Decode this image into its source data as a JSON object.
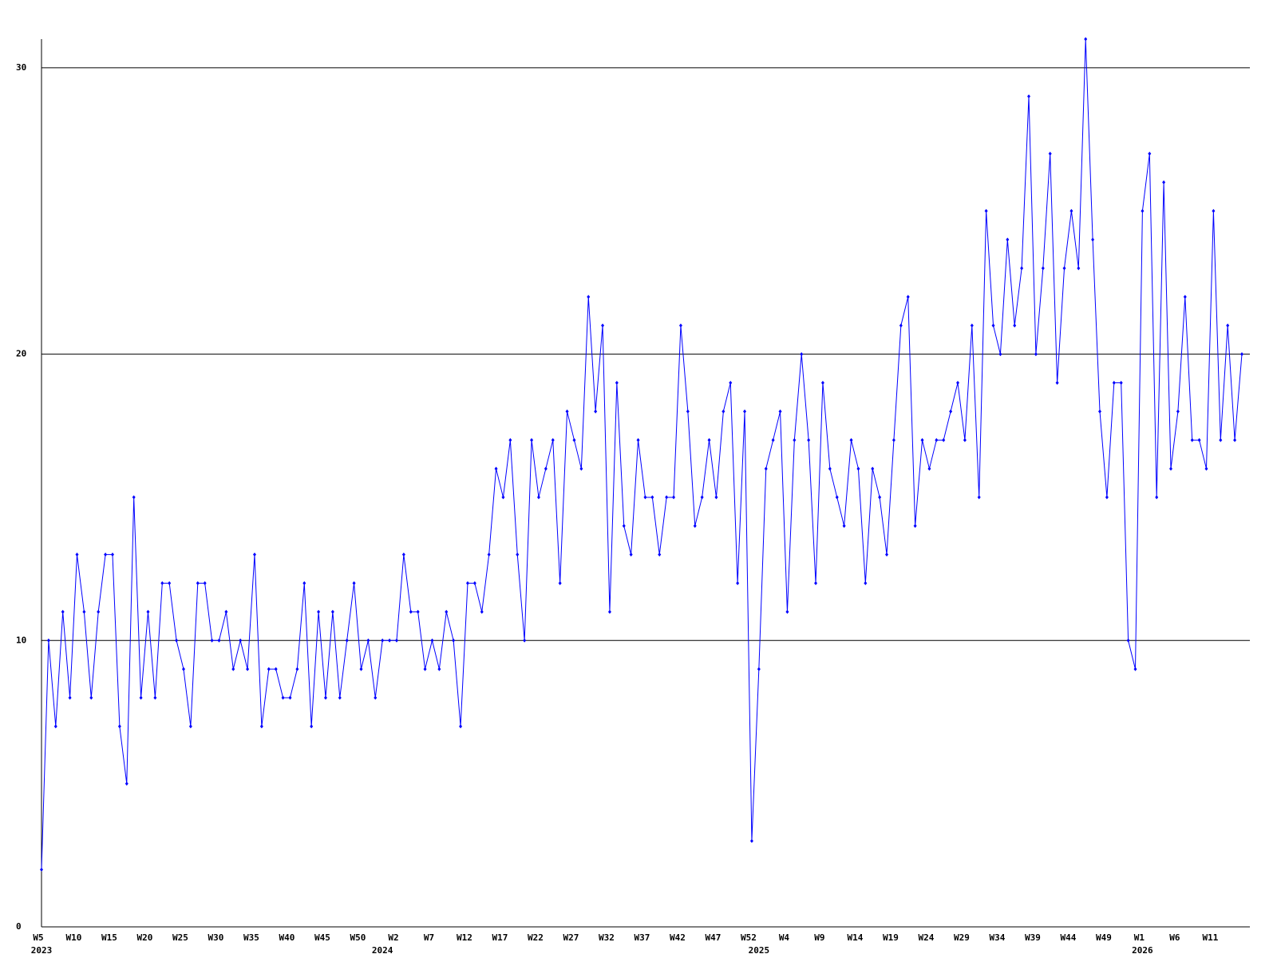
{
  "chart_data": {
    "type": "line",
    "categories": [
      "W5",
      null,
      null,
      null,
      null,
      "W10",
      null,
      null,
      null,
      null,
      "W15",
      null,
      null,
      null,
      null,
      "W20",
      null,
      null,
      null,
      null,
      "W25",
      null,
      null,
      null,
      null,
      "W30",
      null,
      null,
      null,
      null,
      "W35",
      null,
      null,
      null,
      null,
      "W40",
      null,
      null,
      null,
      null,
      "W45",
      null,
      null,
      null,
      null,
      "W50",
      null,
      null,
      null,
      null,
      "W2",
      null,
      null,
      null,
      null,
      "W7",
      null,
      null,
      null,
      null,
      "W12",
      null,
      null,
      null,
      null,
      "W17",
      null,
      null,
      null,
      null,
      "W22",
      null,
      null,
      null,
      null,
      "W27",
      null,
      null,
      null,
      null,
      "W32",
      null,
      null,
      null,
      null,
      "W37",
      null,
      null,
      null,
      null,
      "W42",
      null,
      null,
      null,
      null,
      "W47",
      null,
      null,
      null,
      null,
      "W52",
      null,
      null,
      null,
      null,
      "W4",
      null,
      null,
      null,
      null,
      "W9",
      null,
      null,
      null,
      null,
      "W14",
      null,
      null,
      null,
      null,
      "W19",
      null,
      null,
      null,
      null,
      "W24",
      null,
      null,
      null,
      null,
      "W29",
      null,
      null,
      null,
      null,
      "W34",
      null,
      null,
      null,
      null,
      "W39",
      null,
      null,
      null,
      null,
      "W44",
      null,
      null,
      null,
      null,
      "W49",
      null,
      null,
      null,
      null,
      "W1",
      null,
      null,
      null,
      null,
      "W6",
      null,
      null,
      null,
      null,
      "W11",
      null,
      null,
      null,
      null
    ],
    "year_labels": [
      {
        "label": "2023",
        "category": 0
      },
      {
        "label": "2024",
        "category": 48
      },
      {
        "label": "2025",
        "category": 101
      },
      {
        "label": "2026",
        "category": 155
      }
    ],
    "series": [
      {
        "name": "count",
        "color": "#0000ff",
        "values": [
          2,
          10,
          7,
          11,
          8,
          13,
          11,
          8,
          11,
          13,
          13,
          7,
          5,
          15,
          8,
          11,
          8,
          12,
          12,
          10,
          9,
          7,
          12,
          12,
          10,
          10,
          11,
          9,
          10,
          9,
          13,
          7,
          9,
          9,
          8,
          8,
          9,
          12,
          7,
          11,
          8,
          11,
          8,
          10,
          12,
          9,
          10,
          8,
          10,
          10,
          10,
          13,
          11,
          11,
          9,
          10,
          9,
          11,
          10,
          7,
          12,
          12,
          11,
          13,
          16,
          15,
          17,
          13,
          10,
          17,
          15,
          16,
          17,
          12,
          18,
          17,
          16,
          22,
          18,
          21,
          11,
          19,
          14,
          13,
          17,
          15,
          15,
          13,
          15,
          15,
          21,
          18,
          14,
          15,
          17,
          15,
          18,
          19,
          12,
          18,
          3,
          9,
          16,
          17,
          18,
          11,
          17,
          20,
          17,
          12,
          19,
          16,
          15,
          14,
          17,
          16,
          12,
          16,
          15,
          13,
          17,
          21,
          22,
          14,
          17,
          16,
          17,
          17,
          18,
          19,
          17,
          21,
          15,
          25,
          21,
          20,
          24,
          21,
          23,
          29,
          20,
          23,
          27,
          19,
          23,
          25,
          23,
          31,
          24,
          18,
          15,
          19,
          19,
          10,
          9,
          25,
          27,
          15,
          26,
          16,
          18,
          22,
          17,
          17,
          16,
          25,
          17,
          21,
          17,
          20
        ]
      }
    ],
    "ylim": [
      0,
      31
    ],
    "yticks": [
      0,
      10,
      20,
      30
    ],
    "grid": true
  }
}
